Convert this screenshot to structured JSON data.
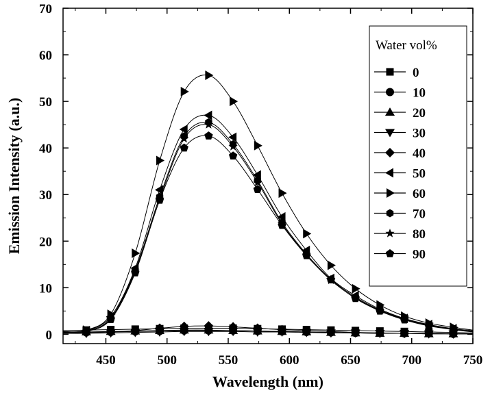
{
  "chart_data": {
    "type": "line",
    "xlabel": "Wavelength (nm)",
    "ylabel": "Emission Intensity (a.u.)",
    "xlim": [
      415,
      750
    ],
    "ylim": [
      -2,
      70
    ],
    "xticks": [
      "450",
      "500",
      "550",
      "600",
      "650",
      "700",
      "750"
    ],
    "yticks": [
      "0",
      "10",
      "20",
      "30",
      "40",
      "50",
      "60",
      "70"
    ],
    "xtick_values": [
      450,
      500,
      550,
      600,
      650,
      700,
      750
    ],
    "ytick_values": [
      0,
      10,
      20,
      30,
      40,
      50,
      60,
      70
    ],
    "legend_title": "Water vol%",
    "legend_position": "right",
    "grid": false,
    "series": [
      {
        "name": "0",
        "marker": "square",
        "x": [
          415,
          434,
          454,
          474,
          494,
          514,
          534,
          554,
          574,
          594,
          614,
          634,
          654,
          674,
          694,
          714,
          734,
          750
        ],
        "y": [
          0.8,
          0.9,
          1.0,
          1.1,
          1.2,
          1.3,
          1.3,
          1.3,
          1.2,
          1.1,
          1.0,
          0.9,
          0.8,
          0.7,
          0.6,
          0.5,
          0.4,
          0.3
        ]
      },
      {
        "name": "10",
        "marker": "circle",
        "x": [
          415,
          434,
          454,
          474,
          494,
          514,
          534,
          554,
          574,
          594,
          614,
          634,
          654,
          674,
          694,
          714,
          734,
          750
        ],
        "y": [
          0.4,
          0.4,
          0.5,
          0.6,
          0.7,
          0.8,
          0.8,
          0.8,
          0.7,
          0.6,
          0.5,
          0.4,
          0.3,
          0.3,
          0.2,
          0.2,
          0.1,
          0.1
        ]
      },
      {
        "name": "20",
        "marker": "triangle-up",
        "x": [
          415,
          434,
          454,
          474,
          494,
          514,
          534,
          554,
          574,
          594,
          614,
          634,
          654,
          674,
          694,
          714,
          734,
          750
        ],
        "y": [
          0.3,
          0.5,
          0.6,
          0.7,
          0.8,
          0.9,
          0.9,
          0.8,
          0.7,
          0.6,
          0.5,
          0.4,
          0.3,
          0.2,
          0.2,
          0.1,
          0.1,
          0.1
        ]
      },
      {
        "name": "30",
        "marker": "triangle-down",
        "x": [
          415,
          434,
          454,
          474,
          494,
          514,
          534,
          554,
          574,
          594,
          614,
          634,
          654,
          674,
          694,
          714,
          734,
          750
        ],
        "y": [
          0.2,
          0.2,
          0.3,
          0.4,
          0.5,
          0.6,
          0.6,
          0.6,
          0.5,
          0.5,
          0.4,
          0.3,
          0.3,
          0.2,
          0.2,
          0.1,
          0.1,
          0.1
        ]
      },
      {
        "name": "40",
        "marker": "diamond",
        "x": [
          415,
          434,
          454,
          474,
          494,
          514,
          534,
          554,
          574,
          594,
          614,
          634,
          654,
          674,
          694,
          714,
          734,
          750
        ],
        "y": [
          0.3,
          0.4,
          0.5,
          0.8,
          1.3,
          1.7,
          1.8,
          1.6,
          1.3,
          1.0,
          0.8,
          0.6,
          0.4,
          0.3,
          0.2,
          0.2,
          0.1,
          0.1
        ]
      },
      {
        "name": "50",
        "marker": "triangle-left",
        "x": [
          415,
          434,
          454,
          474,
          494,
          514,
          534,
          554,
          574,
          594,
          614,
          634,
          654,
          674,
          694,
          714,
          734,
          750
        ],
        "y": [
          0.5,
          0.8,
          3.8,
          14.2,
          31.0,
          44.0,
          47.0,
          42.3,
          34.2,
          25.2,
          18.0,
          12.0,
          8.3,
          5.4,
          3.4,
          2.1,
          1.2,
          0.8
        ]
      },
      {
        "name": "60",
        "marker": "triangle-right",
        "x": [
          415,
          434,
          454,
          474,
          494,
          514,
          534,
          554,
          574,
          594,
          614,
          634,
          654,
          674,
          694,
          714,
          734,
          750
        ],
        "y": [
          0.6,
          0.9,
          4.3,
          17.4,
          37.3,
          52.1,
          55.6,
          50.0,
          40.5,
          30.3,
          21.6,
          14.8,
          9.8,
          6.3,
          3.9,
          2.4,
          1.5,
          0.9
        ]
      },
      {
        "name": "70",
        "marker": "hexagon",
        "x": [
          415,
          434,
          454,
          474,
          494,
          514,
          534,
          554,
          574,
          594,
          614,
          634,
          654,
          674,
          694,
          714,
          734,
          750
        ],
        "y": [
          0.4,
          0.7,
          3.5,
          13.8,
          29.5,
          42.5,
          45.5,
          40.8,
          33.0,
          24.0,
          17.2,
          11.8,
          8.0,
          5.2,
          3.3,
          2.0,
          1.1,
          0.6
        ]
      },
      {
        "name": "80",
        "marker": "star",
        "x": [
          415,
          434,
          454,
          474,
          494,
          514,
          534,
          554,
          574,
          594,
          614,
          634,
          654,
          674,
          694,
          714,
          734,
          750
        ],
        "y": [
          0.4,
          0.6,
          3.3,
          13.5,
          29.0,
          42.0,
          45.0,
          40.3,
          32.6,
          23.7,
          17.0,
          11.6,
          7.8,
          5.1,
          3.2,
          1.9,
          1.1,
          0.6
        ]
      },
      {
        "name": "90",
        "marker": "pentagon",
        "x": [
          415,
          434,
          454,
          474,
          494,
          514,
          534,
          554,
          574,
          594,
          614,
          634,
          654,
          674,
          694,
          714,
          734,
          750
        ],
        "y": [
          0.4,
          0.6,
          3.2,
          13.2,
          28.8,
          40.0,
          42.6,
          38.3,
          31.1,
          23.4,
          16.9,
          11.7,
          7.7,
          5.0,
          3.1,
          1.8,
          1.0,
          0.5
        ]
      }
    ]
  }
}
